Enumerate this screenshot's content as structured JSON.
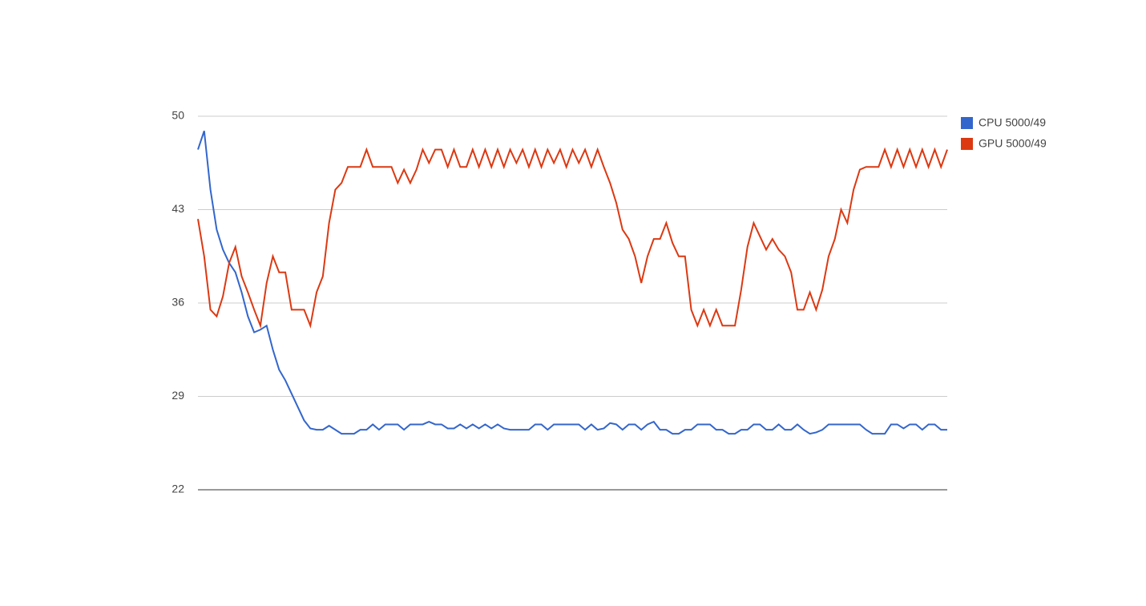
{
  "chart_data": {
    "type": "line",
    "ylim": [
      22,
      50
    ],
    "yticks": [
      22,
      29,
      36,
      43,
      50
    ],
    "grid": true,
    "legend": "right",
    "series": [
      {
        "name": "CPU 5000/49",
        "color": "#3366cc",
        "values": [
          47.5,
          48.9,
          44.5,
          41.5,
          40,
          39,
          38.3,
          36.8,
          35,
          33.8,
          34,
          34.3,
          32.5,
          31,
          30.2,
          29.2,
          28.2,
          27.2,
          26.6,
          26.5,
          26.5,
          26.8,
          26.5,
          26.2,
          26.2,
          26.2,
          26.5,
          26.5,
          26.9,
          26.5,
          26.9,
          26.9,
          26.9,
          26.5,
          26.9,
          26.9,
          26.9,
          27.1,
          26.9,
          26.9,
          26.6,
          26.6,
          26.9,
          26.6,
          26.9,
          26.6,
          26.9,
          26.6,
          26.9,
          26.6,
          26.5,
          26.5,
          26.5,
          26.5,
          26.9,
          26.9,
          26.5,
          26.9,
          26.9,
          26.9,
          26.9,
          26.9,
          26.5,
          26.9,
          26.5,
          26.6,
          27,
          26.9,
          26.5,
          26.9,
          26.9,
          26.5,
          26.9,
          27.1,
          26.5,
          26.5,
          26.2,
          26.2,
          26.5,
          26.5,
          26.9,
          26.9,
          26.9,
          26.5,
          26.5,
          26.2,
          26.2,
          26.5,
          26.5,
          26.9,
          26.9,
          26.5,
          26.5,
          26.9,
          26.5,
          26.5,
          26.9,
          26.5,
          26.2,
          26.3,
          26.5,
          26.9,
          26.9,
          26.9,
          26.9,
          26.9,
          26.9,
          26.5,
          26.2,
          26.2,
          26.2,
          26.9,
          26.9,
          26.6,
          26.9,
          26.9,
          26.5,
          26.9,
          26.9,
          26.5,
          26.5
        ]
      },
      {
        "name": "GPU 5000/49",
        "color": "#dc3912",
        "values": [
          42.3,
          39.5,
          35.5,
          35,
          36.5,
          39,
          40.2,
          38,
          36.8,
          35.5,
          34.3,
          37.5,
          39.5,
          38.3,
          38.3,
          35.5,
          35.5,
          35.5,
          34.3,
          36.8,
          38,
          42,
          44.5,
          45,
          46.2,
          46.2,
          46.2,
          47.5,
          46.2,
          46.2,
          46.2,
          46.2,
          45,
          46,
          45,
          46,
          47.5,
          46.5,
          47.5,
          47.5,
          46.2,
          47.5,
          46.2,
          46.2,
          47.5,
          46.2,
          47.5,
          46.2,
          47.5,
          46.2,
          47.5,
          46.5,
          47.5,
          46.2,
          47.5,
          46.2,
          47.5,
          46.5,
          47.5,
          46.2,
          47.5,
          46.5,
          47.5,
          46.2,
          47.5,
          46.2,
          45,
          43.5,
          41.5,
          40.8,
          39.5,
          37.5,
          39.5,
          40.8,
          40.8,
          42,
          40.5,
          39.5,
          39.5,
          35.5,
          34.3,
          35.5,
          34.3,
          35.5,
          34.3,
          34.3,
          34.3,
          37,
          40.2,
          42,
          41,
          40,
          40.8,
          40,
          39.5,
          38.3,
          35.5,
          35.5,
          36.8,
          35.5,
          37,
          39.5,
          40.8,
          43,
          42,
          44.5,
          46,
          46.2,
          46.2,
          46.2,
          47.5,
          46.2,
          47.5,
          46.2,
          47.5,
          46.2,
          47.5,
          46.2,
          47.5,
          46.2,
          47.5
        ]
      }
    ]
  }
}
